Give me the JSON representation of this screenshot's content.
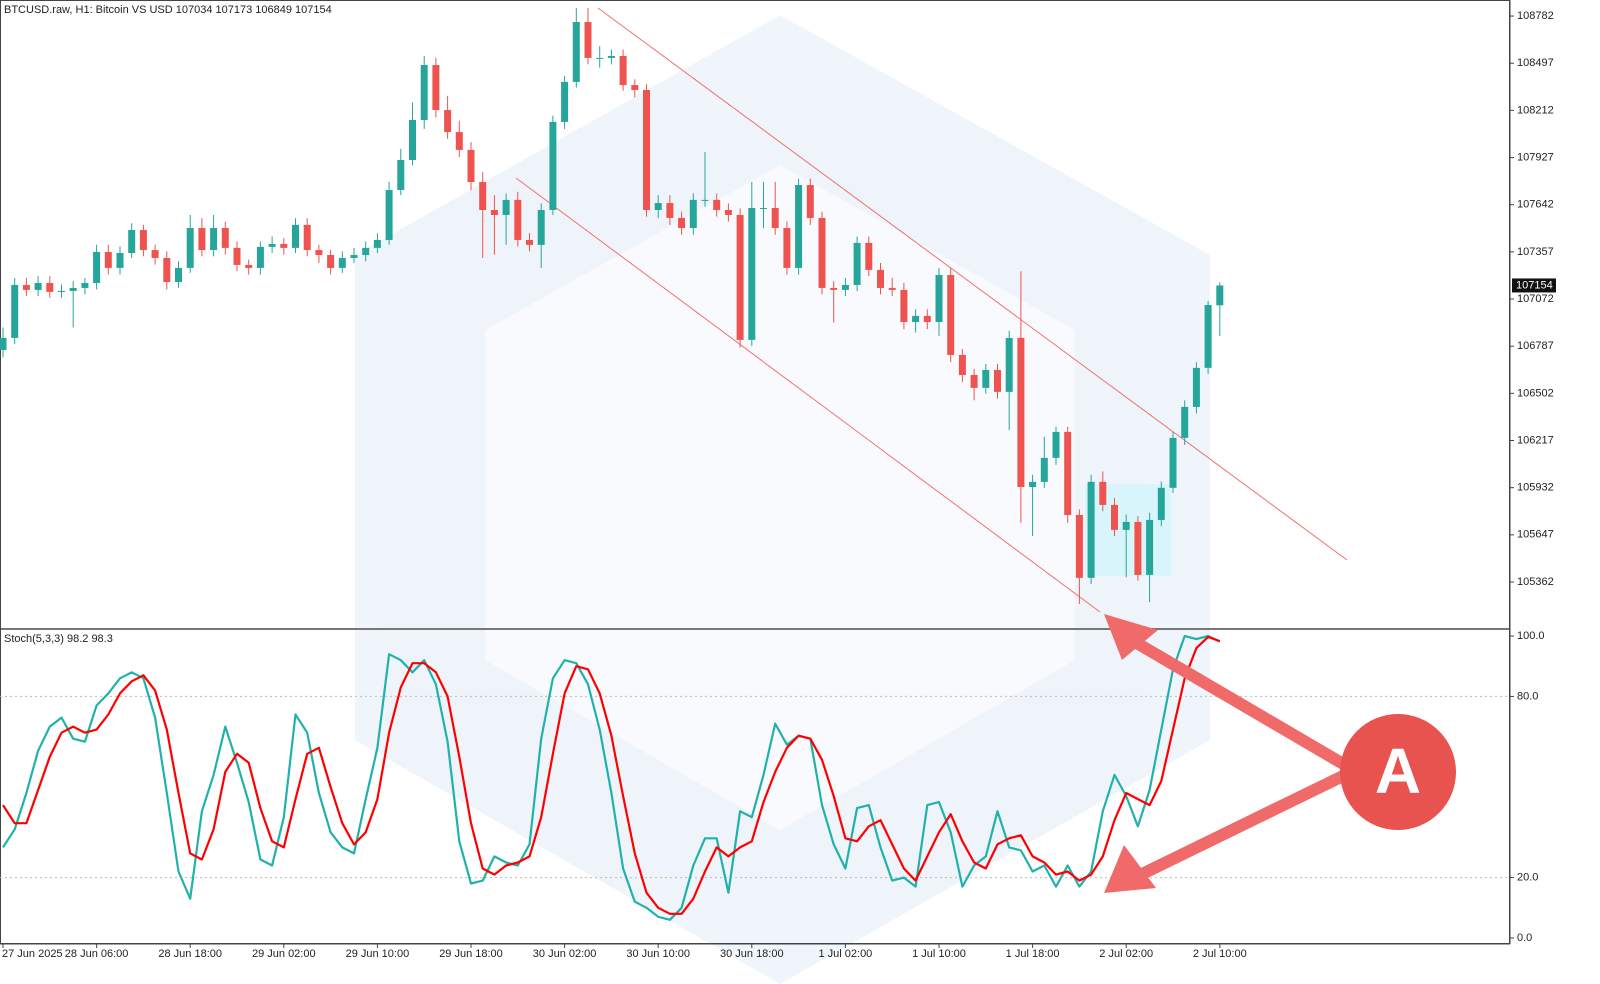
{
  "chart_data": [
    {
      "type": "candlestick",
      "title": "BTCUSD.raw, H1:  Bitcoin VS USD  107034 107173 106849 107154",
      "categories": [
        "27 Jun 2025",
        null,
        null,
        null,
        null,
        null,
        null,
        null,
        "28 Jun 06:00",
        null,
        null,
        null,
        null,
        null,
        null,
        null,
        "28 Jun 18:00",
        null,
        null,
        null,
        null,
        null,
        null,
        null,
        "29 Jun 02:00",
        null,
        null,
        null,
        null,
        null,
        null,
        null,
        "29 Jun 10:00",
        null,
        null,
        null,
        null,
        null,
        null,
        null,
        "29 Jun 18:00",
        null,
        null,
        null,
        null,
        null,
        null,
        null,
        "30 Jun 02:00",
        null,
        null,
        null,
        null,
        null,
        null,
        null,
        "30 Jun 10:00",
        null,
        null,
        null,
        null,
        null,
        null,
        null,
        "30 Jun 18:00",
        null,
        null,
        null,
        null,
        null,
        null,
        null,
        "1 Jul 02:00",
        null,
        null,
        null,
        null,
        null,
        null,
        null,
        "1 Jul 10:00",
        null,
        null,
        null,
        null,
        null,
        null,
        null,
        "1 Jul 18:00",
        null,
        null,
        null,
        null,
        null,
        null,
        null,
        "2 Jul 02:00",
        null,
        null,
        null,
        null,
        null,
        null,
        null,
        "2 Jul 10:00"
      ],
      "open": [
        106764,
        106837,
        107157,
        107127,
        107169,
        107115,
        107121,
        107139,
        107169,
        107356,
        107260,
        107350,
        107489,
        107368,
        107320,
        107175,
        107260,
        107501,
        107368,
        107501,
        107381,
        107278,
        107260,
        107387,
        107405,
        107381,
        107520,
        107368,
        107338,
        107260,
        107320,
        107338,
        107381,
        107429,
        107731,
        107912,
        108154,
        108486,
        108214,
        108081,
        107973,
        107779,
        107610,
        107580,
        107671,
        107429,
        107399,
        107610,
        108142,
        108384,
        108746,
        108529,
        108529,
        108541,
        108365,
        108335,
        107610,
        107652,
        107562,
        107501,
        107671,
        107671,
        107610,
        107580,
        106825,
        107622,
        107622,
        107501,
        107260,
        107761,
        107562,
        107139,
        107127,
        107157,
        107411,
        107248,
        107139,
        107127,
        106933,
        106970,
        106933,
        107217,
        106734,
        106613,
        106535,
        106643,
        106511,
        106837,
        105936,
        105967,
        106112,
        106269,
        105767,
        105387,
        105967,
        105828,
        105677,
        105725,
        105405,
        105737,
        105931,
        106233,
        106420,
        106656,
        107034
      ],
      "high": [
        106900,
        107200,
        107200,
        107210,
        107210,
        107160,
        107180,
        107200,
        107400,
        107400,
        107390,
        107530,
        107520,
        107400,
        107360,
        107300,
        107580,
        107560,
        107580,
        107540,
        107420,
        107310,
        107420,
        107450,
        107440,
        107560,
        107560,
        107400,
        107370,
        107360,
        107380,
        107420,
        107470,
        107780,
        107980,
        108260,
        108540,
        108530,
        108300,
        108150,
        108020,
        107840,
        107700,
        107710,
        107720,
        107470,
        107650,
        108180,
        108420,
        108830,
        108830,
        108600,
        108580,
        108580,
        108400,
        108370,
        107700,
        107700,
        107600,
        107710,
        107960,
        107710,
        107650,
        107620,
        107780,
        107780,
        107780,
        107540,
        107800,
        107800,
        107600,
        107180,
        107200,
        107450,
        107450,
        107290,
        107200,
        107170,
        107010,
        107010,
        107260,
        107260,
        106770,
        106650,
        106680,
        106680,
        106880,
        107240,
        106010,
        106240,
        106300,
        106300,
        105800,
        106010,
        106030,
        105870,
        105770,
        105760,
        105780,
        105970,
        106270,
        106460,
        106690,
        107060,
        107173
      ],
      "low": [
        106720,
        106800,
        107090,
        107090,
        107080,
        107080,
        106900,
        107100,
        107130,
        107220,
        107220,
        107320,
        107330,
        107280,
        107130,
        107140,
        107230,
        107330,
        107330,
        107340,
        107240,
        107220,
        107220,
        107350,
        107340,
        107350,
        107330,
        107290,
        107220,
        107230,
        107290,
        107300,
        107350,
        107400,
        107700,
        107880,
        108100,
        108170,
        108040,
        107930,
        107730,
        107320,
        107340,
        107400,
        107390,
        107360,
        107260,
        107580,
        108100,
        108350,
        108490,
        108470,
        108490,
        108330,
        108290,
        107570,
        107560,
        107520,
        107460,
        107460,
        107630,
        107570,
        107540,
        106780,
        106790,
        107500,
        107460,
        107220,
        107220,
        107520,
        107100,
        106930,
        107090,
        107120,
        107210,
        107100,
        107090,
        106890,
        106870,
        106890,
        106850,
        106690,
        106570,
        106460,
        106500,
        106470,
        106280,
        105720,
        105640,
        105930,
        106070,
        105720,
        105230,
        105350,
        105790,
        105640,
        105390,
        105370,
        105240,
        105700,
        105900,
        106190,
        106380,
        106620,
        106849
      ],
      "close": [
        106837,
        107157,
        107127,
        107169,
        107115,
        107121,
        107139,
        107169,
        107356,
        107260,
        107350,
        107489,
        107368,
        107320,
        107175,
        107260,
        107501,
        107368,
        107501,
        107381,
        107278,
        107260,
        107387,
        107405,
        107381,
        107520,
        107368,
        107338,
        107260,
        107320,
        107338,
        107381,
        107429,
        107731,
        107912,
        108154,
        108486,
        108214,
        108081,
        107973,
        107779,
        107610,
        107580,
        107671,
        107429,
        107399,
        107610,
        108142,
        108384,
        108746,
        108529,
        108529,
        108541,
        108365,
        108335,
        107610,
        107652,
        107562,
        107501,
        107671,
        107671,
        107610,
        107580,
        106825,
        107622,
        107622,
        107501,
        107260,
        107761,
        107562,
        107139,
        107127,
        107157,
        107411,
        107248,
        107139,
        107127,
        106933,
        106970,
        106933,
        107217,
        106734,
        106613,
        106535,
        106643,
        106511,
        106837,
        105936,
        105967,
        106112,
        106269,
        105767,
        105387,
        105967,
        105828,
        105677,
        105725,
        105405,
        105737,
        105931,
        106233,
        106420,
        106656,
        107036,
        107154
      ],
      "up_color": "#26a69a",
      "down_color": "#ef5350",
      "ylim": [
        105084,
        108879
      ],
      "yticks": [
        108782,
        108497,
        108212,
        107927,
        107642,
        107357,
        107072,
        106787,
        106502,
        106217,
        105932,
        105647,
        105362
      ]
    },
    {
      "type": "line",
      "title": "Stoch(5,3,3) 98.2 98.3",
      "series": [
        {
          "color": "#20b2aa",
          "values": [
            30,
            36,
            48,
            62,
            70,
            73,
            66,
            65,
            77,
            81,
            86,
            88,
            86,
            73,
            48,
            22,
            13,
            42,
            54,
            70,
            58,
            45,
            26,
            24,
            40,
            74,
            68,
            48,
            35,
            30,
            28,
            46,
            63,
            94,
            92,
            88,
            92,
            84,
            65,
            32,
            18,
            19,
            27,
            25,
            24,
            31,
            66,
            86,
            92,
            91,
            84,
            69,
            48,
            23,
            12,
            10,
            7,
            6,
            10,
            24,
            33,
            33,
            15,
            42,
            40,
            54,
            71,
            64,
            67,
            66,
            44,
            31,
            23,
            43,
            44,
            30,
            19,
            20,
            17,
            44,
            45,
            35,
            17,
            24,
            27,
            42,
            30,
            29,
            22,
            24,
            17,
            24,
            17,
            22,
            42,
            54,
            47,
            37,
            49,
            69,
            89,
            100,
            99,
            100,
            98.2
          ]
        },
        {
          "color": "#ff0000",
          "values": [
            44,
            38,
            38,
            49,
            60,
            68,
            70,
            68,
            69,
            74,
            81,
            85,
            87,
            82,
            69,
            48,
            28,
            26,
            36,
            55,
            61,
            58,
            43,
            32,
            30,
            46,
            61,
            63,
            50,
            38,
            31,
            35,
            46,
            68,
            83,
            91,
            91,
            88,
            80,
            60,
            38,
            23,
            21,
            24,
            25,
            27,
            40,
            61,
            81,
            90,
            89,
            81,
            67,
            47,
            28,
            15,
            10,
            8,
            8,
            13,
            22,
            30,
            27,
            30,
            32,
            45,
            55,
            63,
            67,
            66,
            59,
            47,
            33,
            32,
            37,
            39,
            31,
            23,
            19,
            27,
            35,
            41,
            32,
            25,
            23,
            31,
            33,
            34,
            27,
            25,
            21,
            22,
            19,
            21,
            27,
            39,
            48,
            46,
            44,
            52,
            69,
            86,
            96,
            99.7,
            98.3
          ]
        }
      ],
      "ylim": [
        -2,
        102
      ],
      "yticks": [
        {
          "value": 100,
          "label": "100.0"
        },
        {
          "value": 80,
          "label": "80.0"
        },
        {
          "value": 20,
          "label": "20.0"
        },
        {
          "value": 0,
          "label": "0.0"
        }
      ]
    }
  ],
  "annotation": "A"
}
